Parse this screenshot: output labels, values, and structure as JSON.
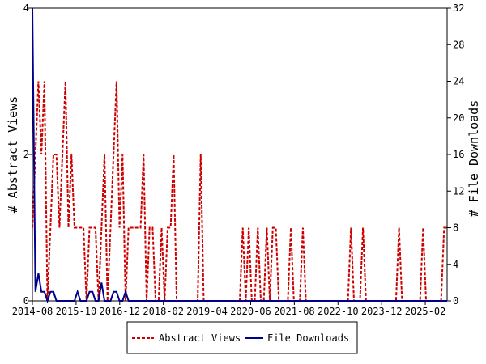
{
  "chart_data": {
    "type": "line",
    "ylabel_left": "# Abstract Views",
    "ylabel_right": "# File Downloads",
    "x_tick_labels": [
      "2014-08",
      "2015-10",
      "2016-12",
      "2018-02",
      "2019-04",
      "2020-06",
      "2021-08",
      "2022-10",
      "2023-12",
      "2025-02"
    ],
    "x_range": [
      "2014-08",
      "2025-09"
    ],
    "y_left": {
      "ticks": [
        "0",
        "2",
        "4"
      ],
      "range": [
        0,
        4
      ]
    },
    "y_right": {
      "ticks": [
        "0",
        "4",
        "8",
        "12",
        "16",
        "20",
        "24",
        "28",
        "32"
      ],
      "range": [
        0,
        32
      ]
    },
    "legend_position": "bottom-center",
    "grid": false,
    "series": [
      {
        "name": "Abstract Views",
        "axis": "left",
        "color": "#cc0000",
        "style": "dashed",
        "values": [
          1,
          2,
          3,
          2,
          3,
          0,
          1,
          2,
          2,
          1,
          2,
          3,
          1,
          2,
          1,
          1,
          1,
          1,
          0,
          1,
          1,
          1,
          0,
          1,
          2,
          0,
          1,
          2,
          3,
          1,
          2,
          0,
          1,
          1,
          1,
          1,
          1,
          2,
          0,
          1,
          1,
          0,
          0,
          1,
          0,
          1,
          1,
          2,
          0,
          0,
          0,
          0,
          0,
          0,
          0,
          0,
          2,
          0,
          0,
          0,
          0,
          0,
          0,
          0,
          0,
          0,
          0,
          0,
          0,
          0,
          1,
          0,
          1,
          0,
          0,
          1,
          0,
          0,
          1,
          0,
          1,
          1,
          0,
          0,
          0,
          0,
          1,
          0,
          0,
          0,
          1,
          0,
          0,
          0,
          0,
          0,
          0,
          0,
          0,
          0,
          0,
          0,
          0,
          0,
          0,
          0,
          1,
          0,
          0,
          0,
          1,
          0,
          0,
          0,
          0,
          0,
          0,
          0,
          0,
          0,
          0,
          0,
          1,
          0,
          0,
          0,
          0,
          0,
          0,
          0,
          1,
          0,
          0,
          0,
          0,
          0,
          0,
          1,
          1
        ]
      },
      {
        "name": "File Downloads",
        "axis": "right",
        "color": "#00008b",
        "style": "solid",
        "values": [
          32,
          1,
          3,
          1,
          1,
          0,
          1,
          1,
          0,
          0,
          0,
          0,
          0,
          0,
          0,
          1,
          0,
          0,
          0,
          1,
          1,
          0,
          0,
          2,
          0,
          0,
          0,
          1,
          1,
          0,
          0,
          1,
          0,
          0,
          0,
          0,
          0,
          0,
          0,
          0,
          0,
          0,
          0,
          0,
          0,
          0,
          0,
          0,
          0,
          0,
          0,
          0,
          0,
          0,
          0,
          0,
          0,
          0,
          0,
          0,
          0,
          0,
          0,
          0,
          0,
          0,
          0,
          0,
          0,
          0,
          0,
          0,
          0,
          0,
          0,
          0,
          0,
          0,
          0,
          0,
          0,
          0,
          0,
          0,
          0,
          0,
          0,
          0,
          0,
          0,
          0,
          0,
          0,
          0,
          0,
          0,
          0,
          0,
          0,
          0,
          0,
          0,
          0,
          0,
          0,
          0,
          0,
          0,
          0,
          0,
          0,
          0,
          0,
          0,
          0,
          0,
          0,
          0,
          0,
          0,
          0,
          0,
          0,
          0,
          0,
          0,
          0,
          0,
          0,
          0,
          0,
          0,
          0,
          0,
          0,
          0,
          0,
          0,
          0
        ]
      }
    ]
  }
}
